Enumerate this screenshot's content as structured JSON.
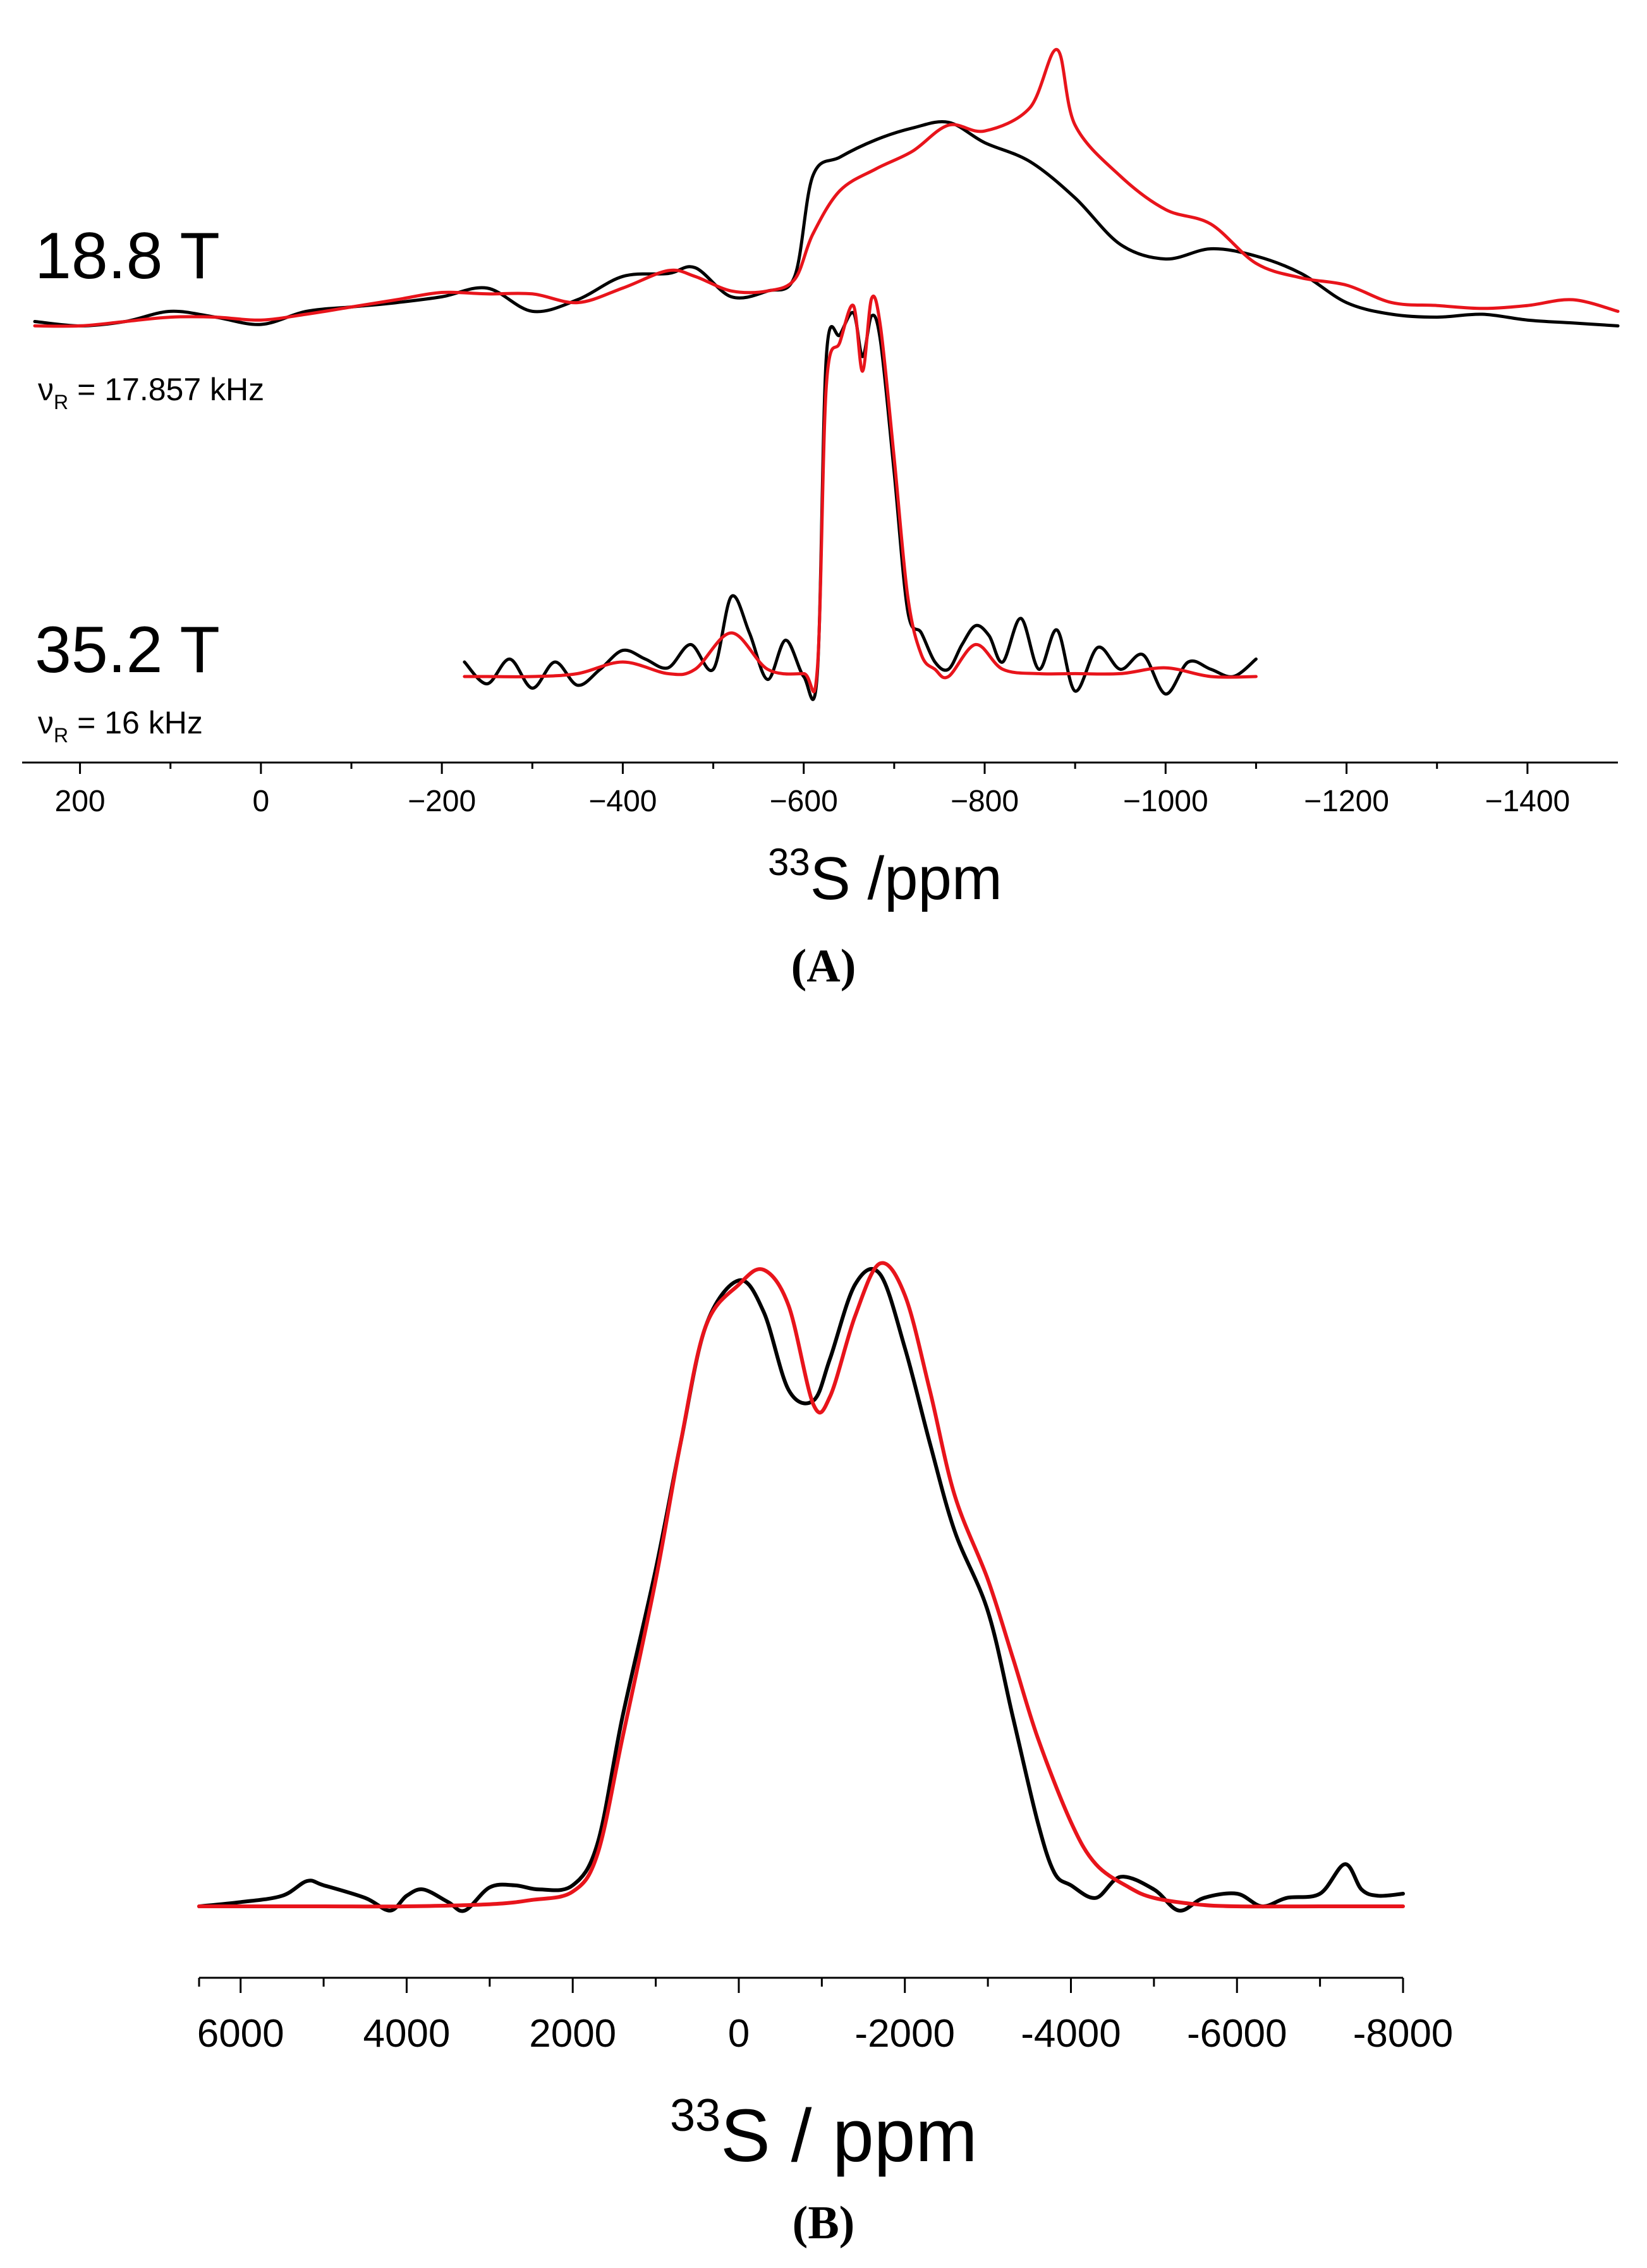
{
  "colors": {
    "experimental": "#000000",
    "simulated": "#e8141b",
    "axis": "#000000"
  },
  "chart_data": [
    {
      "type": "line",
      "panel_label": "(A)",
      "xlabel_sup": "33",
      "xlabel_rest": "S /ppm",
      "xlim": [
        250,
        -1500
      ],
      "x_axis_reversed": true,
      "xticks": [
        200,
        0,
        -200,
        -400,
        -600,
        -800,
        -1000,
        -1200,
        -1400
      ],
      "xtick_labels": [
        "200",
        "0",
        "−200",
        "−400",
        "−600",
        "−800",
        "−1000",
        "−1200",
        "−1400"
      ],
      "grid": false,
      "traces": [
        {
          "field_label": "18.8 T",
          "rate_symbol": "ν",
          "rate_sub": "R",
          "rate_value": "= 17.857 kHz",
          "series": [
            {
              "role": "experimental",
              "color": "#000000",
              "x": [
                250,
                200,
                150,
                100,
                50,
                0,
                -50,
                -100,
                -150,
                -200,
                -250,
                -300,
                -350,
                -400,
                -450,
                -480,
                -520,
                -560,
                -590,
                -610,
                -640,
                -680,
                -720,
                -760,
                -800,
                -850,
                -900,
                -950,
                -1000,
                -1050,
                -1100,
                -1150,
                -1200,
                -1250,
                -1300,
                -1350,
                -1400,
                -1450,
                -1500
              ],
              "y": [
                0.05,
                0.02,
                0.05,
                0.12,
                0.08,
                0.03,
                0.12,
                0.15,
                0.18,
                0.22,
                0.28,
                0.12,
                0.2,
                0.36,
                0.38,
                0.42,
                0.22,
                0.26,
                0.36,
                1.05,
                1.18,
                1.3,
                1.38,
                1.42,
                1.28,
                1.15,
                0.9,
                0.58,
                0.48,
                0.55,
                0.5,
                0.38,
                0.18,
                0.1,
                0.08,
                0.1,
                0.06,
                0.04,
                0.02
              ]
            },
            {
              "role": "simulated",
              "color": "#e8141b",
              "x": [
                250,
                200,
                150,
                100,
                50,
                0,
                -50,
                -100,
                -150,
                -200,
                -250,
                -300,
                -350,
                -400,
                -450,
                -480,
                -520,
                -560,
                -590,
                -610,
                -640,
                -680,
                -720,
                -760,
                -800,
                -850,
                -880,
                -900,
                -950,
                -1000,
                -1050,
                -1100,
                -1150,
                -1200,
                -1250,
                -1300,
                -1350,
                -1400,
                -1450,
                -1500
              ],
              "y": [
                0.02,
                0.02,
                0.05,
                0.08,
                0.08,
                0.06,
                0.1,
                0.15,
                0.2,
                0.25,
                0.24,
                0.24,
                0.18,
                0.28,
                0.4,
                0.36,
                0.26,
                0.26,
                0.34,
                0.65,
                0.95,
                1.1,
                1.22,
                1.4,
                1.36,
                1.52,
                1.92,
                1.4,
                1.05,
                0.82,
                0.72,
                0.45,
                0.35,
                0.3,
                0.18,
                0.16,
                0.14,
                0.16,
                0.2,
                0.12
              ]
            }
          ]
        },
        {
          "field_label": "35.2 T",
          "rate_symbol": "ν",
          "rate_sub": "R",
          "rate_value": "= 16 kHz",
          "series": [
            {
              "role": "experimental",
              "color": "#000000",
              "x": [
                -225,
                -250,
                -275,
                -300,
                -325,
                -350,
                -375,
                -400,
                -425,
                -450,
                -475,
                -500,
                -520,
                -540,
                -560,
                -580,
                -600,
                -615,
                -625,
                -640,
                -655,
                -665,
                -675,
                -685,
                -700,
                -715,
                -730,
                -745,
                -760,
                -775,
                -790,
                -805,
                -820,
                -840,
                -860,
                -880,
                -900,
                -925,
                -950,
                -975,
                -1000,
                -1025,
                -1050,
                -1075,
                -1100
              ],
              "y": [
                0.1,
                -0.05,
                0.12,
                -0.08,
                0.1,
                -0.06,
                0.05,
                0.18,
                0.12,
                0.06,
                0.22,
                0.05,
                0.55,
                0.3,
                -0.02,
                0.25,
                0.0,
                0.02,
                2.2,
                2.35,
                2.5,
                2.2,
                2.48,
                2.3,
                1.4,
                0.45,
                0.3,
                0.1,
                0.05,
                0.22,
                0.35,
                0.28,
                0.1,
                0.4,
                0.05,
                0.32,
                -0.1,
                0.2,
                0.05,
                0.15,
                -0.12,
                0.1,
                0.05,
                0.0,
                0.12
              ]
            },
            {
              "role": "simulated",
              "color": "#e8141b",
              "x": [
                -225,
                -250,
                -300,
                -350,
                -400,
                -450,
                -480,
                -520,
                -560,
                -600,
                -615,
                -625,
                -640,
                -655,
                -665,
                -675,
                -685,
                -700,
                -715,
                -730,
                -745,
                -760,
                -790,
                -820,
                -860,
                -900,
                -950,
                -1000,
                -1050,
                -1100
              ],
              "y": [
                0.0,
                0.0,
                0.0,
                0.02,
                0.1,
                0.02,
                0.05,
                0.3,
                0.05,
                0.02,
                0.05,
                2.0,
                2.3,
                2.55,
                2.1,
                2.6,
                2.4,
                1.5,
                0.55,
                0.15,
                0.05,
                0.0,
                0.22,
                0.05,
                0.02,
                0.02,
                0.02,
                0.06,
                0.0,
                0.0
              ]
            }
          ]
        }
      ]
    },
    {
      "type": "line",
      "panel_label": "(B)",
      "xlabel_sup": "33",
      "xlabel_rest": "S / ppm",
      "xlim": [
        6500,
        -8000
      ],
      "x_axis_reversed": true,
      "xticks": [
        6000,
        4000,
        2000,
        0,
        -2000,
        -4000,
        -6000,
        -8000
      ],
      "xtick_labels": [
        "6000",
        "4000",
        "2000",
        "0",
        "-2000",
        "-4000",
        "-6000",
        "-8000"
      ],
      "grid": false,
      "series": [
        {
          "role": "experimental",
          "color": "#000000",
          "x": [
            6500,
            6000,
            5500,
            5200,
            5000,
            4500,
            4200,
            4000,
            3800,
            3500,
            3300,
            3000,
            2700,
            2400,
            2000,
            1700,
            1400,
            1000,
            700,
            400,
            0,
            -300,
            -600,
            -900,
            -1100,
            -1400,
            -1700,
            -2000,
            -2300,
            -2600,
            -3000,
            -3300,
            -3600,
            -3800,
            -4000,
            -4300,
            -4600,
            -5000,
            -5300,
            -5600,
            -6000,
            -6300,
            -6600,
            -7000,
            -7300,
            -7500,
            -7700,
            -8000
          ],
          "y": [
            0.0,
            0.02,
            0.05,
            0.12,
            0.1,
            0.04,
            -0.02,
            0.05,
            0.08,
            0.02,
            -0.02,
            0.09,
            0.1,
            0.08,
            0.1,
            0.3,
            0.9,
            1.6,
            2.2,
            2.75,
            2.97,
            2.82,
            2.45,
            2.4,
            2.6,
            2.95,
            3.0,
            2.65,
            2.2,
            1.78,
            1.4,
            0.9,
            0.4,
            0.16,
            0.1,
            0.04,
            0.14,
            0.08,
            -0.02,
            0.04,
            0.06,
            0.0,
            0.04,
            0.06,
            0.2,
            0.08,
            0.05,
            0.06
          ]
        },
        {
          "role": "simulated",
          "color": "#e8141b",
          "x": [
            6500,
            6000,
            5000,
            4000,
            3000,
            2500,
            2000,
            1700,
            1400,
            1000,
            700,
            400,
            0,
            -300,
            -600,
            -900,
            -1100,
            -1400,
            -1700,
            -2000,
            -2300,
            -2600,
            -3000,
            -3300,
            -3600,
            -4000,
            -4300,
            -4700,
            -5000,
            -5500,
            -6000,
            -7000,
            -8000
          ],
          "y": [
            0.0,
            0.0,
            0.0,
            0.0,
            0.01,
            0.03,
            0.07,
            0.25,
            0.8,
            1.55,
            2.2,
            2.75,
            2.95,
            3.02,
            2.85,
            2.38,
            2.42,
            2.8,
            3.05,
            2.9,
            2.45,
            1.95,
            1.55,
            1.18,
            0.8,
            0.4,
            0.2,
            0.09,
            0.04,
            0.01,
            0.0,
            0.0,
            0.0
          ]
        }
      ]
    }
  ]
}
